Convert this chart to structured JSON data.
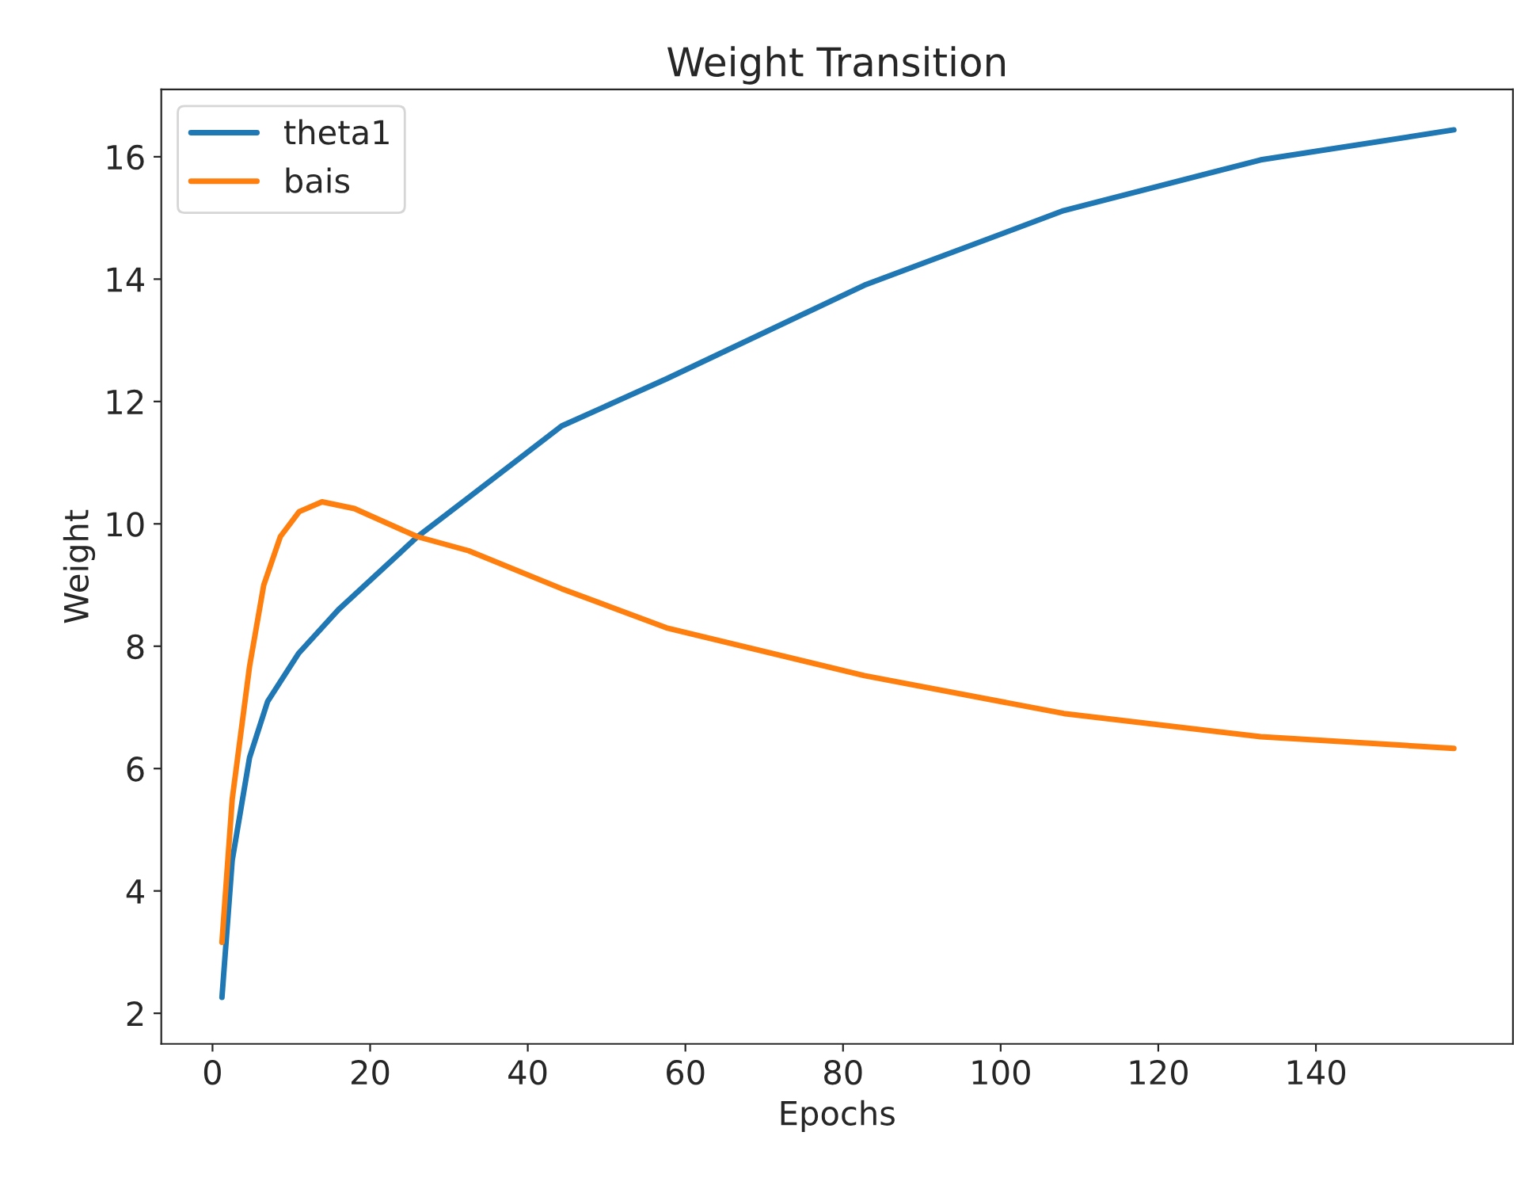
{
  "chart_data": {
    "type": "line",
    "title": "Weight Transition",
    "xlabel": "Epochs",
    "ylabel": "Weight",
    "xlim": [
      -6.5,
      165
    ],
    "xticks": [
      0,
      20,
      40,
      60,
      80,
      100,
      120,
      140
    ],
    "ylim": [
      1.5,
      17.1
    ],
    "yticks": [
      2,
      4,
      6,
      8,
      10,
      12,
      14,
      16
    ],
    "legend": "top left",
    "grid": false,
    "series": [
      {
        "name": "theta1",
        "color": "#1f77b4",
        "x": [
          1.2,
          2.5,
          4.7,
          7,
          10.9,
          16,
          26,
          32.5,
          44.3,
          57.6,
          82.7,
          108,
          133,
          157.5
        ],
        "values": [
          2.26,
          4.5,
          6.18,
          7.1,
          7.88,
          8.6,
          9.79,
          10.43,
          11.6,
          12.37,
          13.9,
          15.12,
          15.95,
          16.44
        ]
      },
      {
        "name": "bais",
        "color": "#ff7f0e",
        "x": [
          1.2,
          2.5,
          4.7,
          6.5,
          8.6,
          11,
          13.9,
          18,
          26,
          32.5,
          44.3,
          57.6,
          82.7,
          108,
          133,
          157.5
        ],
        "values": [
          3.16,
          5.5,
          7.67,
          9.0,
          9.79,
          10.2,
          10.36,
          10.25,
          9.79,
          9.56,
          8.94,
          8.3,
          7.52,
          6.9,
          6.52,
          6.33
        ]
      }
    ]
  }
}
